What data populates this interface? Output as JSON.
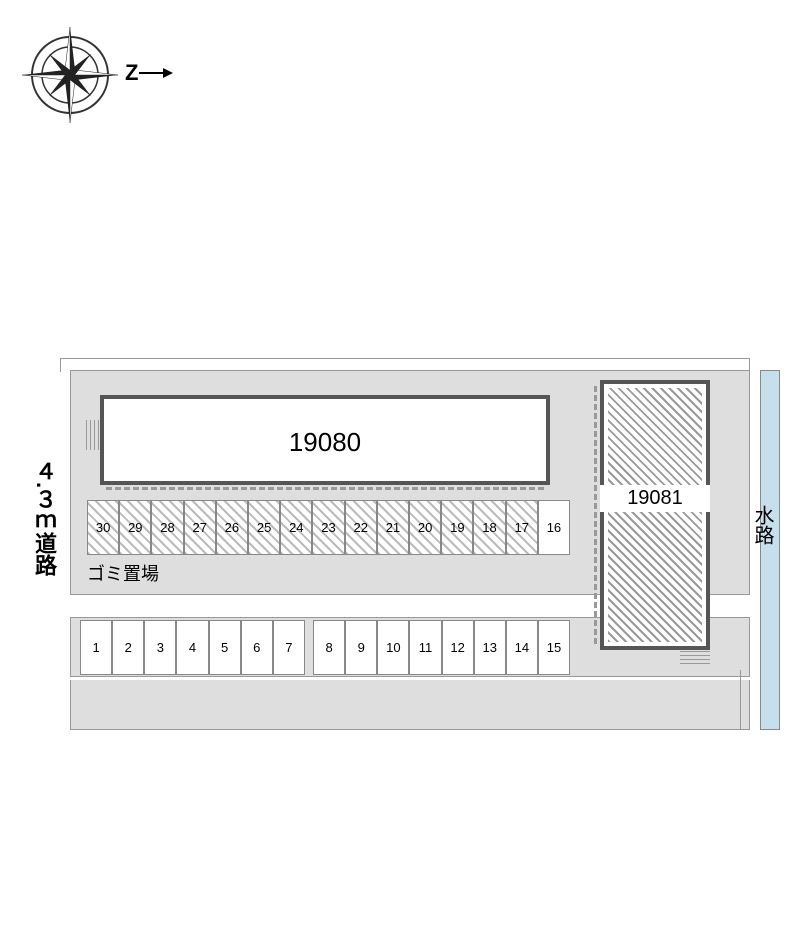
{
  "compass": {
    "direction_label": "Z"
  },
  "road": {
    "label": "４.３ｍ道路"
  },
  "waterway": {
    "label": "水路"
  },
  "buildings": {
    "b1": {
      "label": "19080"
    },
    "b2": {
      "label": "19081"
    }
  },
  "trash": {
    "label": "ゴミ置場"
  },
  "parking_top": {
    "slots": [
      "30",
      "29",
      "28",
      "27",
      "26",
      "25",
      "24",
      "23",
      "22",
      "21",
      "20",
      "19",
      "18",
      "17",
      "16"
    ],
    "hatched_count": 14
  },
  "parking_bottom": {
    "group1": [
      "1",
      "2",
      "3",
      "4",
      "5",
      "6",
      "7"
    ],
    "group2": [
      "8",
      "9",
      "10",
      "11",
      "12",
      "13",
      "14",
      "15"
    ]
  },
  "colors": {
    "lot_bg": "#dedede",
    "waterway_bg": "#c5e0ec",
    "border": "#999999",
    "building_border": "#555555",
    "hatch": "#bbbbbb"
  }
}
